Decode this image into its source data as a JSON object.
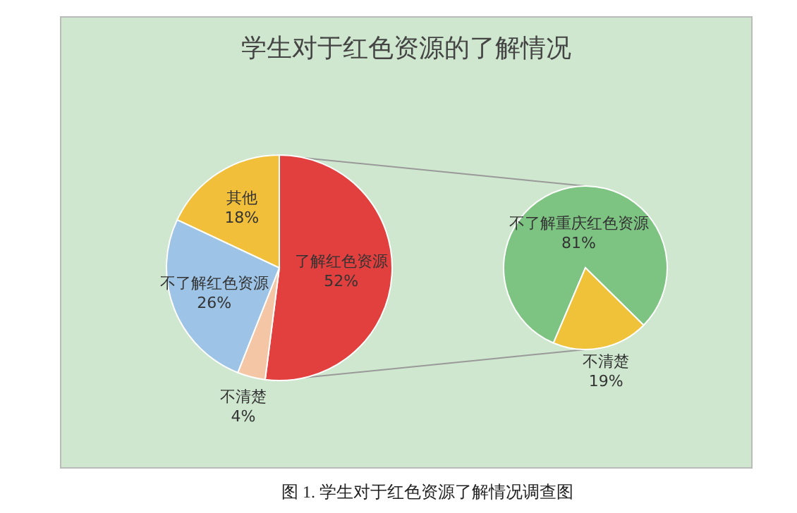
{
  "chart_data": [
    {
      "type": "pie",
      "title": "学生对于红色资源的了解情况",
      "categories": [
        "了解红色资源",
        "不清楚",
        "不了解红色资源",
        "其他"
      ],
      "values": [
        52,
        4,
        26,
        18
      ],
      "value_labels": [
        "52%",
        "4%",
        "26%",
        "18%"
      ],
      "colors": [
        "#e2403e",
        "#f4c6a6",
        "#9dc3e6",
        "#f1bf3a"
      ],
      "annotations": [
        "图 1. 学生对于红色资源了解情况调查图"
      ]
    },
    {
      "type": "pie",
      "categories": [
        "不了解重庆红色资源",
        "不清楚"
      ],
      "values": [
        81,
        19
      ],
      "value_labels": [
        "81%",
        "19%"
      ],
      "colors": [
        "#7dc382",
        "#efc23a"
      ]
    }
  ]
}
